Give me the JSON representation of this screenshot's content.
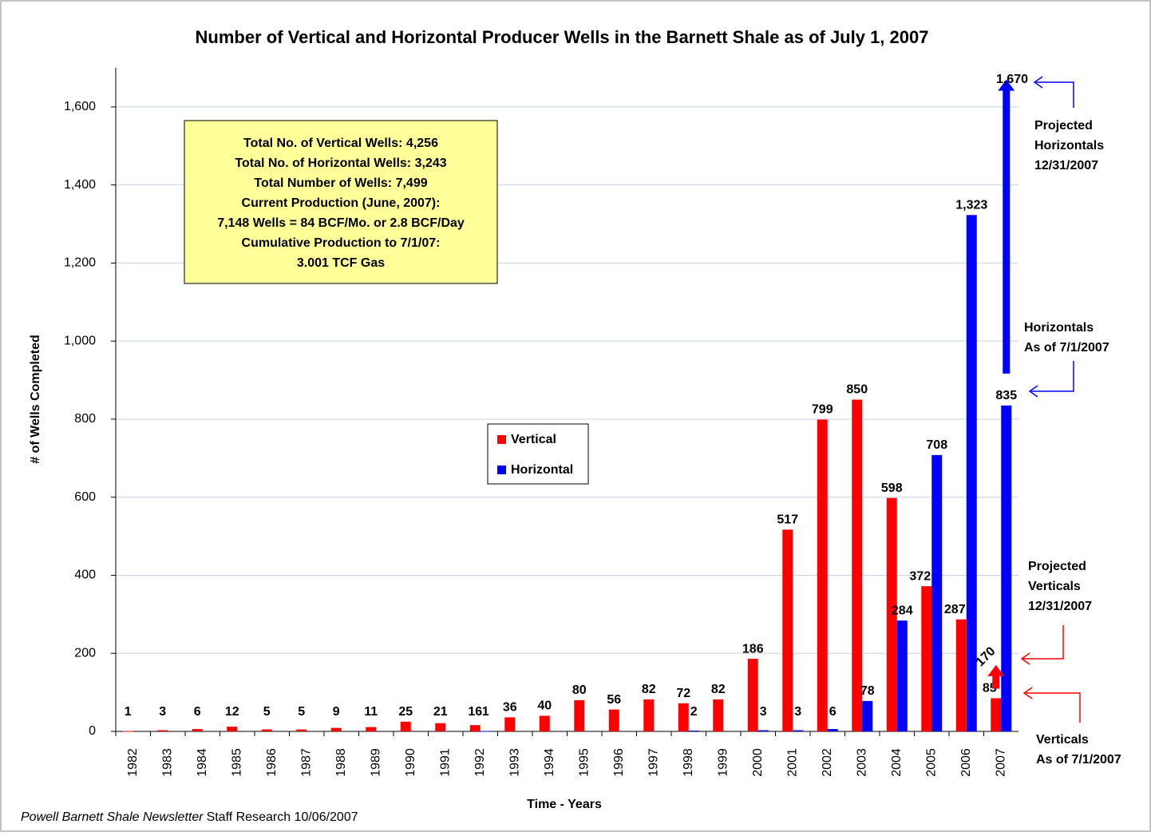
{
  "chart_data": {
    "type": "bar",
    "title": "Number of Vertical and Horizontal Producer Wells in the Barnett Shale as of July 1, 2007",
    "x_label": "Time - Years",
    "y_label": "# of Wells Completed",
    "categories": [
      "1982",
      "1983",
      "1984",
      "1985",
      "1986",
      "1987",
      "1988",
      "1989",
      "1990",
      "1991",
      "1992",
      "1993",
      "1994",
      "1995",
      "1996",
      "1997",
      "1998",
      "1999",
      "2000",
      "2001",
      "2002",
      "2003",
      "2004",
      "2005",
      "2006",
      "2007"
    ],
    "series": [
      {
        "name": "Vertical",
        "color": "#ff0000",
        "values": [
          1,
          3,
          6,
          12,
          5,
          5,
          9,
          11,
          25,
          21,
          16,
          36,
          40,
          80,
          56,
          82,
          72,
          82,
          186,
          517,
          799,
          850,
          598,
          372,
          287,
          85
        ]
      },
      {
        "name": "Horizontal",
        "color": "#0000ff",
        "values": [
          null,
          null,
          null,
          null,
          null,
          null,
          null,
          null,
          null,
          null,
          1,
          null,
          null,
          null,
          null,
          null,
          2,
          null,
          3,
          3,
          6,
          78,
          284,
          708,
          1323,
          835
        ],
        "value_labels": [
          null,
          null,
          null,
          null,
          null,
          null,
          null,
          null,
          null,
          null,
          "1",
          null,
          null,
          null,
          null,
          null,
          "2",
          null,
          "3",
          "3",
          "6",
          "78",
          "284",
          "708",
          "1,323",
          "835"
        ]
      }
    ],
    "ylim": [
      0,
      1700
    ],
    "yticks": [
      0,
      200,
      400,
      600,
      800,
      {
        "value": 1000,
        "label": "1,000"
      },
      {
        "value": 1200,
        "label": "1,200"
      },
      {
        "value": 1400,
        "label": "1,400"
      },
      {
        "value": 1600,
        "label": "1,600"
      }
    ],
    "grid": true,
    "legend": "center",
    "projections": [
      {
        "value": 1670,
        "label": "1,670",
        "color": "#0000ff"
      },
      {
        "value": 170,
        "label": "170",
        "color": "#ff0000"
      }
    ],
    "annotations": [
      {
        "lines": [
          "Projected",
          "Horizontals",
          "12/31/2007"
        ]
      },
      {
        "lines": [
          "Horizontals",
          "As of 7/1/2007"
        ]
      },
      {
        "lines": [
          "Projected",
          "Verticals",
          "12/31/2007"
        ]
      },
      {
        "lines": [
          "Verticals",
          "As of 7/1/2007"
        ]
      }
    ]
  },
  "info_box": {
    "lines": [
      "Total No. of Vertical Wells: 4,256",
      "Total No. of Horizontal  Wells: 3,243",
      "Total Number of Wells: 7,499",
      "Current Production (June, 2007):",
      "7,148 Wells = 84 BCF/Mo.  or 2.8 BCF/Day",
      "Cumulative Production to 7/1/07:",
      "3.001 TCF Gas"
    ]
  },
  "footer": {
    "italic": "Powell Barnett Shale Newsletter",
    "text": "Staff Research 10/06/2007"
  }
}
